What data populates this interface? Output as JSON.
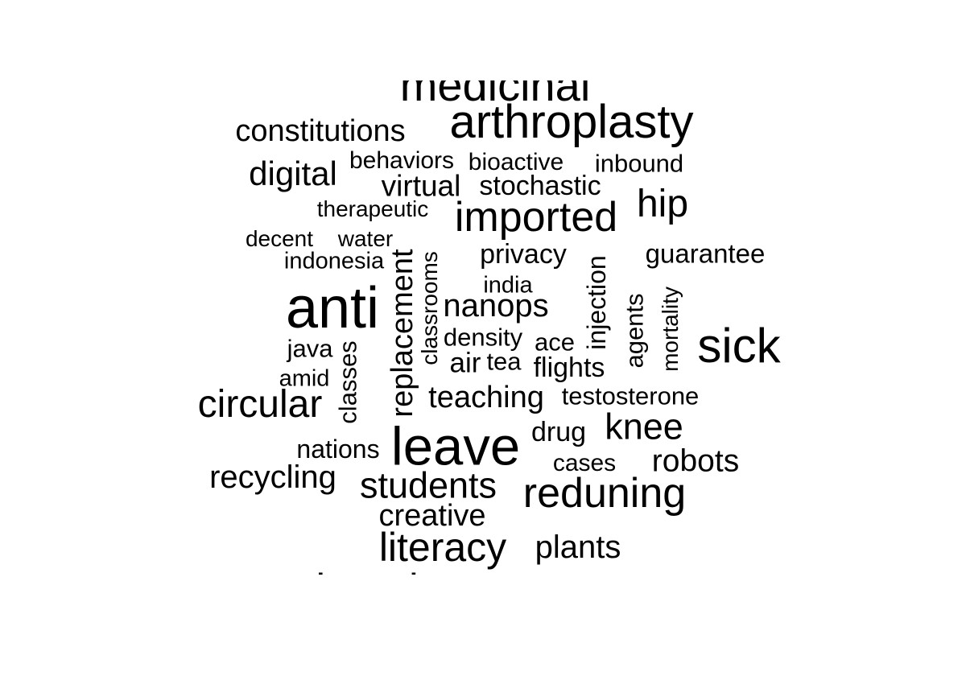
{
  "colors": {
    "background": "#ffffff",
    "text": "#000000"
  },
  "words": [
    "medicinal",
    "arthroplasty",
    "constitutions",
    "digital",
    "behaviors",
    "bioactive",
    "inbound",
    "virtual",
    "stochastic",
    "hip",
    "therapeutic",
    "imported",
    "decent",
    "water",
    "indonesia",
    "privacy",
    "guarantee",
    "replacement",
    "classrooms",
    "india",
    "injection",
    "anti",
    "nanops",
    "agents",
    "mortality",
    "density",
    "ace",
    "sick",
    "java",
    "air",
    "tea",
    "flights",
    "classes",
    "amid",
    "circular",
    "teaching",
    "testosterone",
    "drug",
    "knee",
    "leave",
    "nations",
    "cases",
    "robots",
    "recycling",
    "students",
    "reduning",
    "creative",
    "literacy",
    "plants",
    "learning"
  ]
}
